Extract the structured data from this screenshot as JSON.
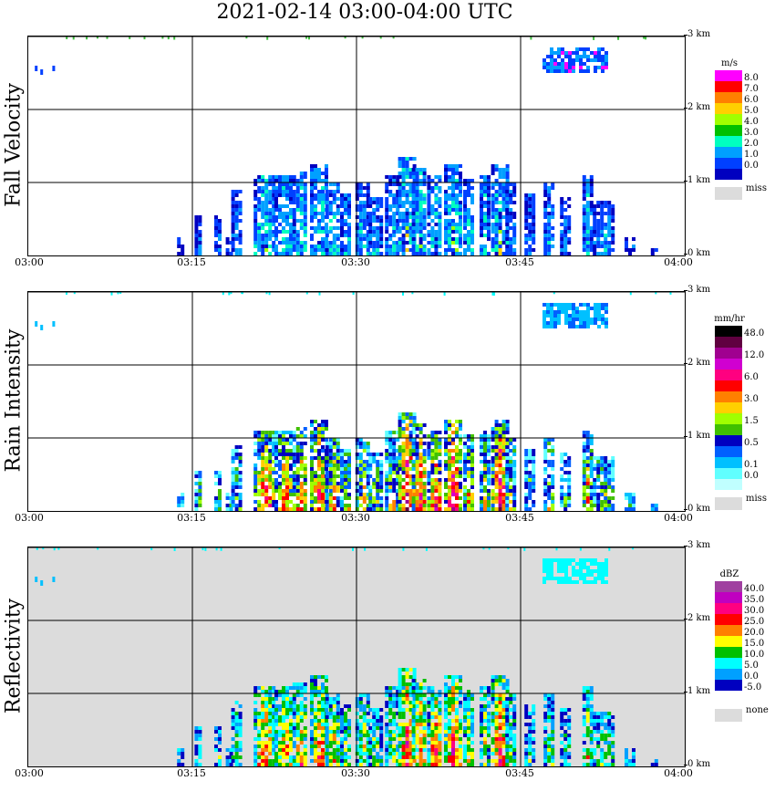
{
  "title": "2021-02-14   03:00-04:00 UTC",
  "chart_data": [
    {
      "type": "heatmap",
      "ylabel": "Fall Velocity",
      "x_ticks": [
        "03:00",
        "03:15",
        "03:30",
        "03:45",
        "04:00"
      ],
      "y_ticks": [
        "0 km",
        "1 km",
        "2 km",
        "3 km"
      ],
      "x_range_minutes": [
        0,
        60
      ],
      "y_range_km": [
        0,
        3.0
      ],
      "background": "#ffffff",
      "grid": true,
      "colorbar": {
        "unit": "m/s",
        "labels": [
          "8.0",
          "7.0",
          "6.0",
          "5.0",
          "4.0",
          "3.0",
          "2.0",
          "1.0",
          "0.0"
        ],
        "colors": [
          "#ff00ff",
          "#ff0000",
          "#ff8000",
          "#ffd000",
          "#a0ff00",
          "#00c000",
          "#00ffc0",
          "#00a0ff",
          "#0040ff",
          "#0000c0"
        ],
        "missing_label": "miss"
      }
    },
    {
      "type": "heatmap",
      "ylabel": "Rain Intensity",
      "x_ticks": [
        "03:00",
        "03:15",
        "03:30",
        "03:45",
        "04:00"
      ],
      "y_ticks": [
        "0 km",
        "1 km",
        "2 km",
        "3 km"
      ],
      "x_range_minutes": [
        0,
        60
      ],
      "y_range_km": [
        0,
        3.0
      ],
      "background": "#ffffff",
      "grid": true,
      "colorbar": {
        "unit": "mm/hr",
        "labels": [
          "48.0",
          "",
          "12.0",
          "",
          "6.0",
          "",
          "3.0",
          "",
          "1.5",
          "",
          "0.5",
          "",
          "0.1",
          "0.0"
        ],
        "colors": [
          "#000000",
          "#600040",
          "#a00090",
          "#d000d0",
          "#ff0080",
          "#ff0000",
          "#ff8000",
          "#ffd000",
          "#a0ff00",
          "#40c000",
          "#0000c0",
          "#0060ff",
          "#00c0ff",
          "#60ffff",
          "#c0ffff"
        ],
        "missing_label": "miss"
      }
    },
    {
      "type": "heatmap",
      "ylabel": "Reflectivity",
      "x_ticks": [
        "03:00",
        "03:15",
        "03:30",
        "03:45",
        "04:00"
      ],
      "y_ticks": [
        "0 km",
        "1 km",
        "2 km",
        "3 km"
      ],
      "x_range_minutes": [
        0,
        60
      ],
      "y_range_km": [
        0,
        3.0
      ],
      "background": "#dcdcdc",
      "grid": true,
      "colorbar": {
        "unit": "dBZ",
        "labels": [
          "40.0",
          "35.0",
          "30.0",
          "25.0",
          "20.0",
          "15.0",
          "10.0",
          "5.0",
          "0.0",
          "-5.0"
        ],
        "colors": [
          "#a040a0",
          "#c000c0",
          "#ff0080",
          "#ff0000",
          "#ff8000",
          "#ffff00",
          "#00c000",
          "#00ffff",
          "#00a0ff",
          "#0000c0",
          "#ffffff"
        ],
        "missing_label": "none"
      }
    }
  ]
}
